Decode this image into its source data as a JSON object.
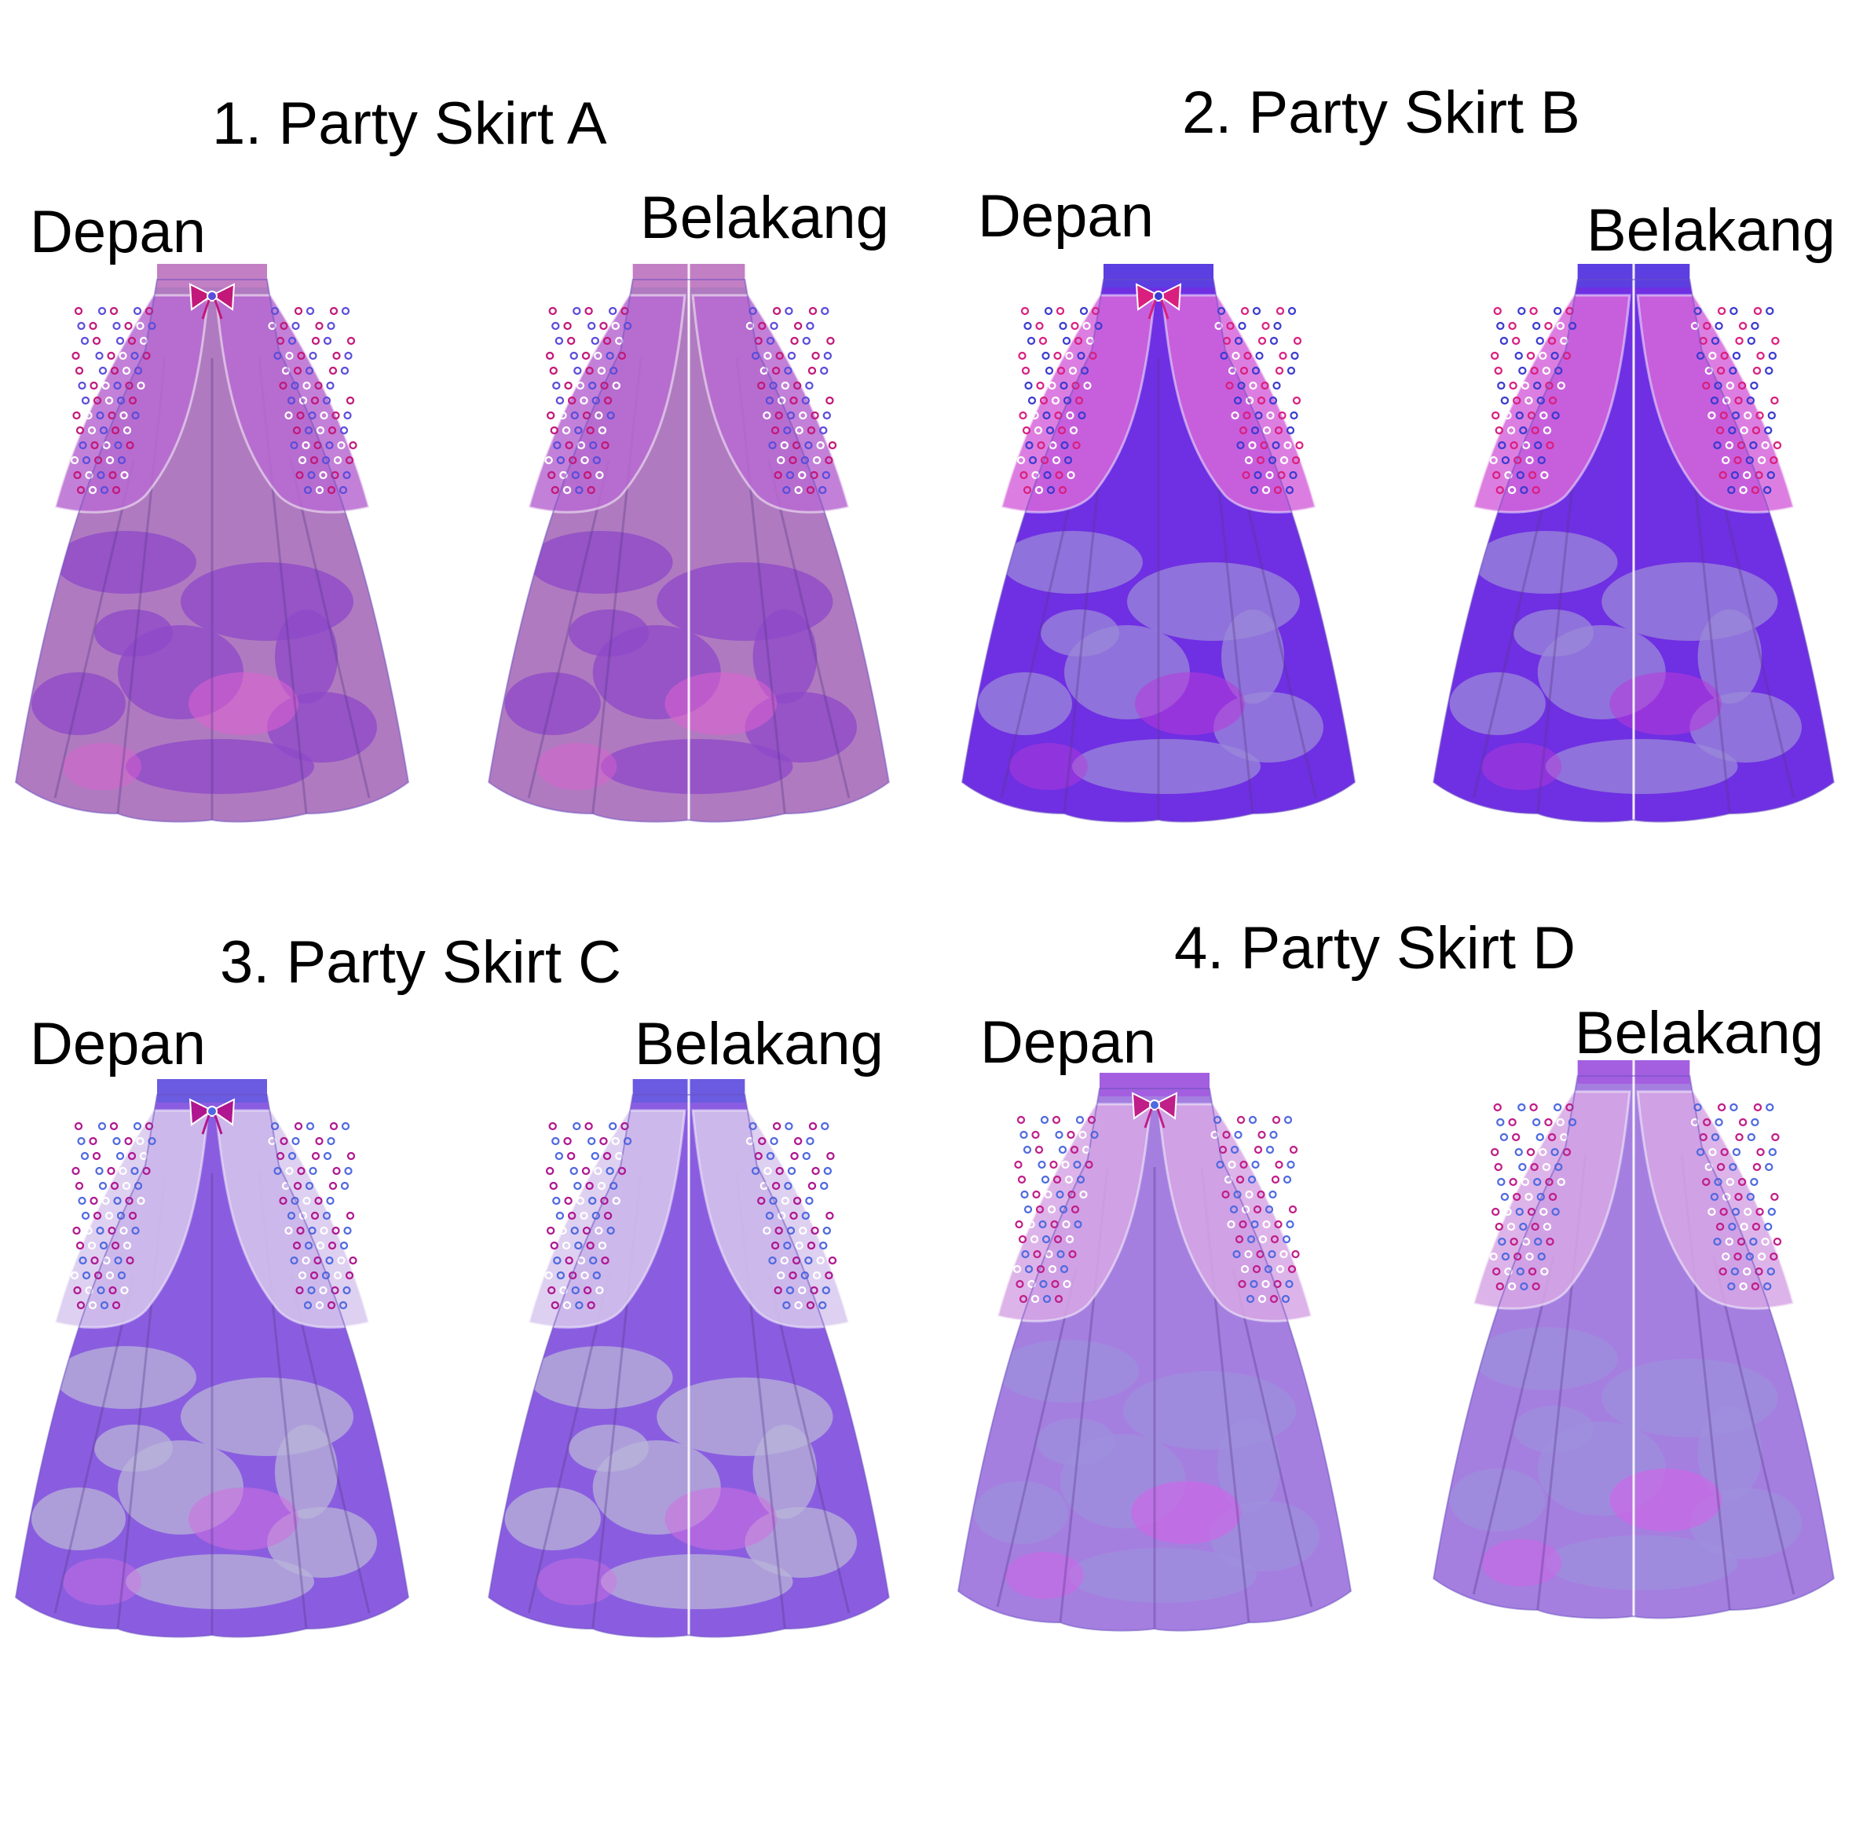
{
  "sheet": {
    "background": "#ffffff",
    "text_color": "#000000"
  },
  "skirts": [
    {
      "title": "1. Party Skirt A",
      "front_label": "Depan",
      "back_label": "Belakang",
      "colors": {
        "waist": "#c27fc4",
        "overlay": "#b96bd2",
        "base": "#b07ac0",
        "marble": "#8e48c9",
        "accent": "#e060d0",
        "dot1": "#c2187a",
        "dot2": "#5b4ddb"
      }
    },
    {
      "title": "2. Party Skirt B",
      "front_label": "Depan",
      "back_label": "Belakang",
      "colors": {
        "waist": "#5b3fe0",
        "overlay": "#d768dc",
        "base": "#6f2fe3",
        "marble": "#9a8ad8",
        "accent": "#b83bd8",
        "dot1": "#d9207f",
        "dot2": "#3b3bd0"
      }
    },
    {
      "title": "3. Party Skirt C",
      "front_label": "Depan",
      "back_label": "Belakang",
      "colors": {
        "waist": "#6a5be0",
        "overlay": "#d9c8ee",
        "base": "#8a5de0",
        "marble": "#b8b4d8",
        "accent": "#d070e0",
        "dot1": "#b0168f",
        "dot2": "#5069e0"
      }
    },
    {
      "title": "4. Party Skirt D",
      "front_label": "Depan",
      "back_label": "Belakang",
      "colors": {
        "waist": "#a35fe0",
        "overlay": "#d8a8e6",
        "base": "#a57fe0",
        "marble": "#9d8fdc",
        "accent": "#d660e8",
        "dot1": "#c01e88",
        "dot2": "#4f6ae0"
      }
    }
  ]
}
